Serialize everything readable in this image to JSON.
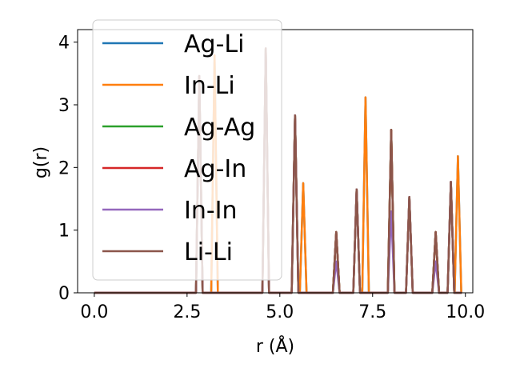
{
  "chart_data": {
    "type": "line",
    "xlabel": "r (Å)",
    "ylabel": "g(r)",
    "xlim": [
      -0.45,
      10.2
    ],
    "ylim": [
      0,
      4.2
    ],
    "x_ticks": [
      "0.0",
      "2.5",
      "5.0",
      "7.5",
      "10.0"
    ],
    "x_tick_values": [
      0,
      2.5,
      5.0,
      7.5,
      10.0
    ],
    "y_ticks": [
      "0",
      "1",
      "2",
      "3",
      "4"
    ],
    "y_tick_values": [
      0,
      1,
      2,
      3,
      4
    ],
    "grid": false,
    "legend_position": "upper-left",
    "series": [
      {
        "name": "Ag-Li",
        "color": "#1f77b4",
        "peaks": [
          [
            2.83,
            3.46
          ],
          [
            3.24,
            3.79
          ],
          [
            4.62,
            3.9
          ],
          [
            5.41,
            2.83
          ],
          [
            5.63,
            1.75
          ],
          [
            6.52,
            0.97
          ],
          [
            7.07,
            1.65
          ],
          [
            7.31,
            3.12
          ],
          [
            8.0,
            2.6
          ],
          [
            8.49,
            1.53
          ],
          [
            9.2,
            0.97
          ],
          [
            9.61,
            1.77
          ],
          [
            9.8,
            2.18
          ]
        ]
      },
      {
        "name": "In-Li",
        "color": "#ff7f0e",
        "peaks": [
          [
            2.83,
            3.46
          ],
          [
            3.24,
            3.79
          ],
          [
            4.62,
            3.9
          ],
          [
            5.41,
            2.83
          ],
          [
            5.63,
            1.75
          ],
          [
            6.52,
            0.97
          ],
          [
            7.07,
            1.65
          ],
          [
            7.31,
            3.12
          ],
          [
            8.0,
            2.6
          ],
          [
            8.49,
            1.53
          ],
          [
            9.2,
            0.97
          ],
          [
            9.61,
            1.77
          ],
          [
            9.8,
            2.18
          ]
        ]
      },
      {
        "name": "Ag-Ag",
        "color": "#2ca02c",
        "peaks": [
          [
            2.83,
            3.46
          ],
          [
            4.62,
            3.9
          ],
          [
            5.41,
            2.83
          ],
          [
            6.52,
            0.97
          ],
          [
            7.07,
            1.65
          ],
          [
            8.0,
            2.6
          ],
          [
            8.49,
            1.53
          ],
          [
            9.2,
            0.97
          ],
          [
            9.61,
            1.77
          ]
        ]
      },
      {
        "name": "Ag-In",
        "color": "#d62728",
        "peaks": [
          [
            2.83,
            3.46
          ],
          [
            4.62,
            3.9
          ],
          [
            5.41,
            2.83
          ],
          [
            6.52,
            0.97
          ],
          [
            7.07,
            1.65
          ],
          [
            8.0,
            2.6
          ],
          [
            8.49,
            1.53
          ],
          [
            9.2,
            0.97
          ],
          [
            9.61,
            1.77
          ]
        ]
      },
      {
        "name": "In-In",
        "color": "#9467bd",
        "peaks": [
          [
            2.83,
            3.46
          ],
          [
            4.62,
            3.9
          ],
          [
            5.41,
            2.83
          ],
          [
            6.52,
            0.5
          ],
          [
            7.07,
            1.65
          ],
          [
            8.0,
            1.3
          ],
          [
            8.49,
            1.53
          ],
          [
            9.2,
            0.5
          ],
          [
            9.61,
            1.77
          ]
        ]
      },
      {
        "name": "Li-Li",
        "color": "#8c564b",
        "peaks": [
          [
            2.83,
            3.46
          ],
          [
            4.62,
            3.9
          ],
          [
            5.41,
            2.83
          ],
          [
            6.52,
            0.97
          ],
          [
            7.07,
            1.65
          ],
          [
            8.0,
            2.6
          ],
          [
            8.49,
            1.53
          ],
          [
            9.2,
            0.97
          ],
          [
            9.61,
            1.77
          ]
        ]
      }
    ]
  }
}
